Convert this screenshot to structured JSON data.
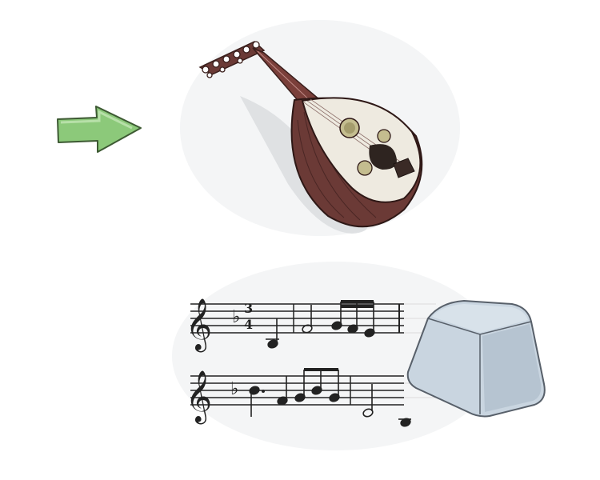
{
  "illustration": {
    "arrow": {
      "icon": "right-arrow-icon",
      "color": "#8cc97a",
      "outline": "#3d5a33"
    },
    "instrument": {
      "icon": "oud-icon",
      "body_color": "#6b3a36",
      "soundboard_color": "#eeeae0",
      "shadow_color": "#d9dcdf"
    },
    "sheet_music": {
      "icon": "sheet-music-icon",
      "clef": "𝄞",
      "time_signature": {
        "top": "3",
        "bottom": "4"
      },
      "key_signature": "♭"
    },
    "keycap": {
      "icon": "keyboard-key-icon",
      "color": "#c9d5e0",
      "outline": "#58606a"
    }
  }
}
